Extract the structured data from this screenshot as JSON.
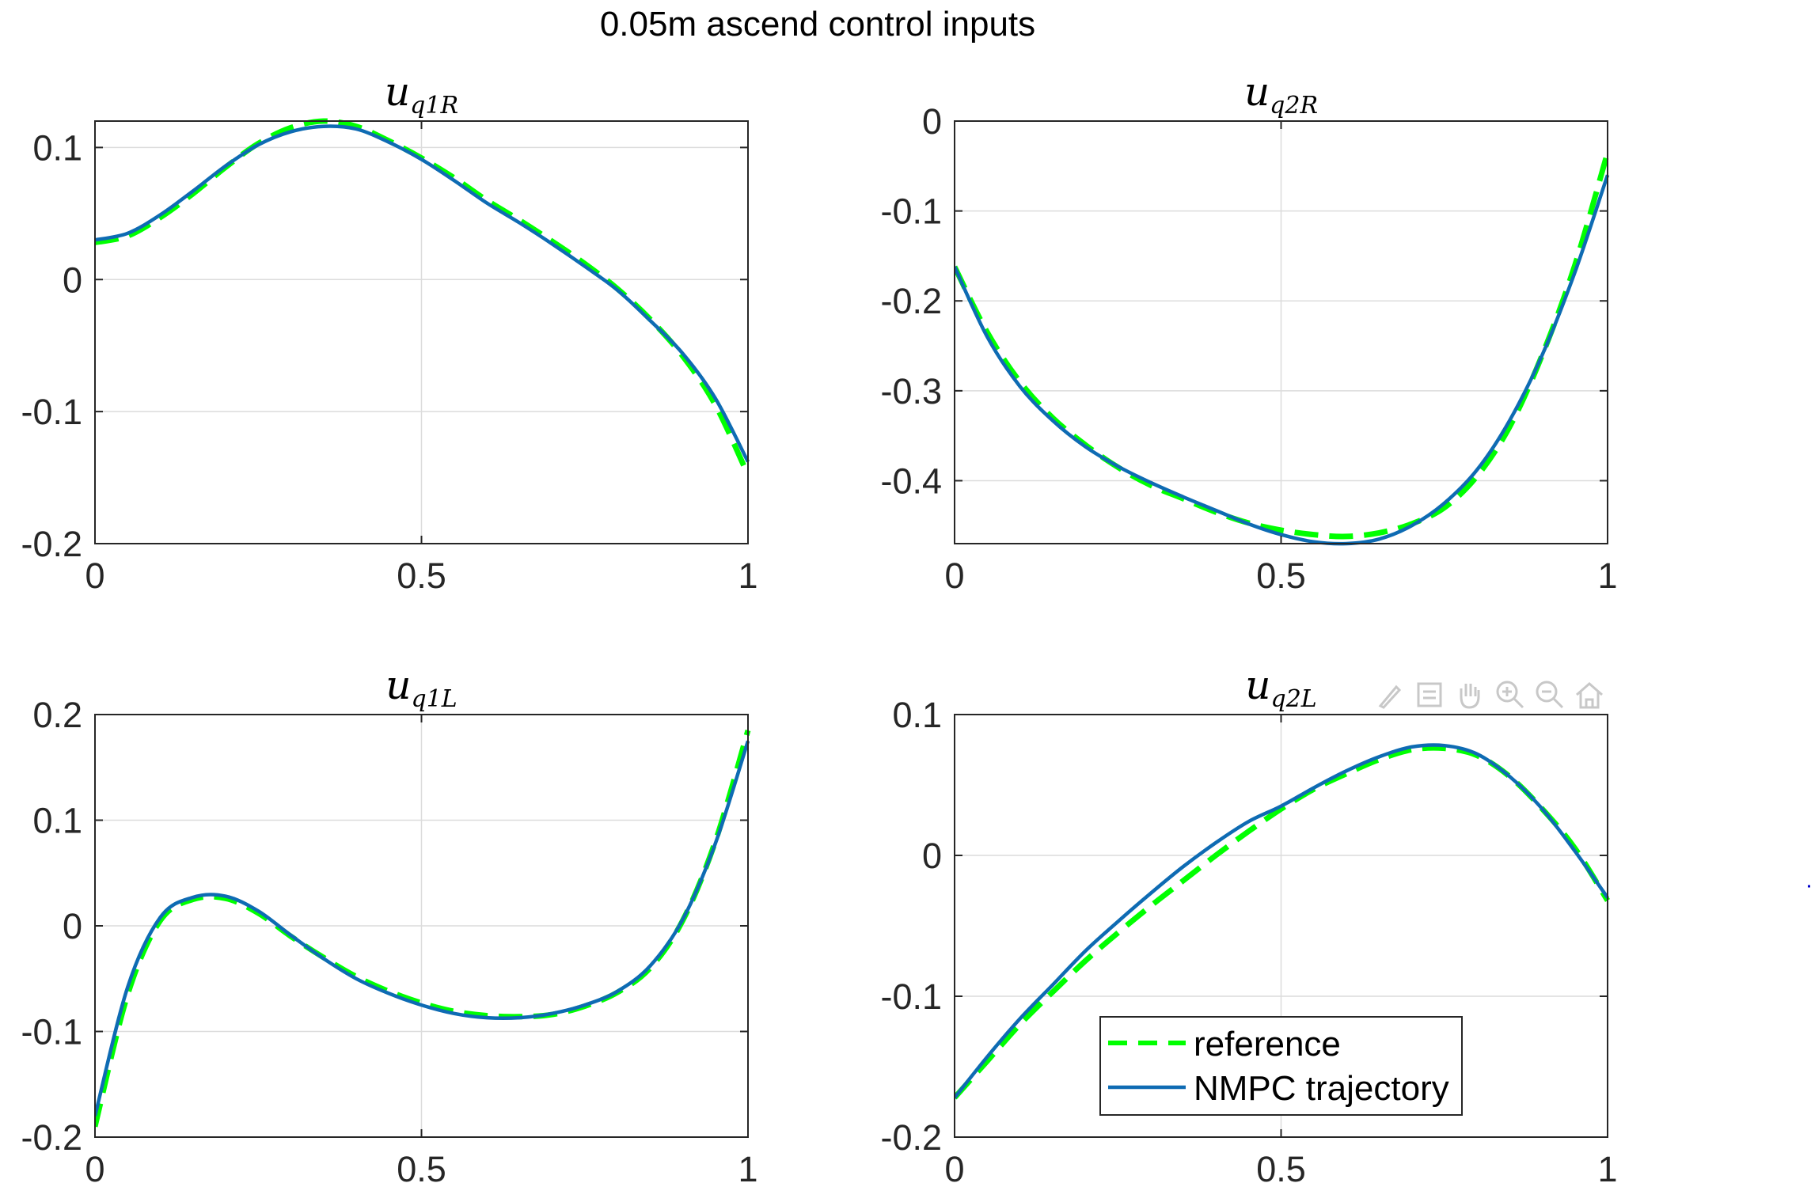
{
  "figure": {
    "title": "0.05m ascend control inputs"
  },
  "legend": {
    "reference_label": "reference",
    "nmpc_label": "NMPC trajectory"
  },
  "colors": {
    "reference": "#00ff00",
    "nmpc": "#0e6bb3",
    "grid": "#dcdcdc",
    "axes": "#262626"
  },
  "toolbar": {
    "icons": [
      "brush-icon",
      "datatip-icon",
      "pan-icon",
      "zoom-in-icon",
      "zoom-out-icon",
      "home-icon"
    ]
  },
  "chart_data": [
    {
      "type": "line",
      "title": "u_{q1R}",
      "title_base": "u",
      "title_sub": "q1R",
      "xlim": [
        0,
        1
      ],
      "ylim": [
        -0.2,
        0.12
      ],
      "xticks": [
        0,
        0.5,
        1
      ],
      "xtick_labels": [
        "0",
        "0.5",
        "1"
      ],
      "yticks": [
        -0.2,
        -0.1,
        0,
        0.1
      ],
      "ytick_labels": [
        "-0.2",
        "-0.1",
        "0",
        "0.1"
      ],
      "grid": true,
      "x": [
        0,
        0.05,
        0.1,
        0.15,
        0.2,
        0.25,
        0.3,
        0.35,
        0.4,
        0.45,
        0.5,
        0.55,
        0.6,
        0.65,
        0.7,
        0.75,
        0.8,
        0.85,
        0.9,
        0.95,
        1.0
      ],
      "series": [
        {
          "name": "reference",
          "values": [
            0.028,
            0.033,
            0.047,
            0.065,
            0.085,
            0.103,
            0.115,
            0.12,
            0.116,
            0.105,
            0.092,
            0.077,
            0.06,
            0.045,
            0.029,
            0.012,
            -0.007,
            -0.03,
            -0.058,
            -0.095,
            -0.148
          ]
        },
        {
          "name": "NMPC trajectory",
          "values": [
            0.03,
            0.035,
            0.049,
            0.067,
            0.086,
            0.102,
            0.112,
            0.116,
            0.114,
            0.104,
            0.091,
            0.075,
            0.058,
            0.043,
            0.027,
            0.01,
            -0.008,
            -0.031,
            -0.056,
            -0.09,
            -0.138
          ]
        }
      ]
    },
    {
      "type": "line",
      "title": "u_{q2R}",
      "title_base": "u",
      "title_sub": "q2R",
      "xlim": [
        0,
        1
      ],
      "ylim": [
        -0.47,
        0
      ],
      "xticks": [
        0,
        0.5,
        1
      ],
      "xtick_labels": [
        "0",
        "0.5",
        "1"
      ],
      "yticks": [
        -0.4,
        -0.3,
        -0.2,
        -0.1,
        0
      ],
      "ytick_labels": [
        "-0.4",
        "-0.3",
        "-0.2",
        "-0.1",
        "0"
      ],
      "grid": true,
      "x": [
        0,
        0.05,
        0.1,
        0.15,
        0.2,
        0.25,
        0.3,
        0.35,
        0.4,
        0.45,
        0.5,
        0.55,
        0.6,
        0.65,
        0.7,
        0.75,
        0.8,
        0.85,
        0.9,
        0.95,
        1.0
      ],
      "series": [
        {
          "name": "reference",
          "values": [
            -0.162,
            -0.235,
            -0.29,
            -0.33,
            -0.36,
            -0.385,
            -0.405,
            -0.42,
            -0.435,
            -0.447,
            -0.455,
            -0.46,
            -0.462,
            -0.458,
            -0.448,
            -0.43,
            -0.395,
            -0.34,
            -0.26,
            -0.16,
            -0.035
          ]
        },
        {
          "name": "NMPC trajectory",
          "values": [
            -0.162,
            -0.24,
            -0.295,
            -0.333,
            -0.362,
            -0.384,
            -0.402,
            -0.418,
            -0.433,
            -0.448,
            -0.46,
            -0.468,
            -0.47,
            -0.465,
            -0.45,
            -0.425,
            -0.388,
            -0.333,
            -0.26,
            -0.168,
            -0.06
          ]
        }
      ]
    },
    {
      "type": "line",
      "title": "u_{q1L}",
      "title_base": "u",
      "title_sub": "q1L",
      "xlim": [
        0,
        1
      ],
      "ylim": [
        -0.2,
        0.2
      ],
      "xticks": [
        0,
        0.5,
        1
      ],
      "xtick_labels": [
        "0",
        "0.5",
        "1"
      ],
      "yticks": [
        -0.2,
        -0.1,
        0,
        0.1,
        0.2
      ],
      "ytick_labels": [
        "-0.2",
        "-0.1",
        "0",
        "0.1",
        "0.2"
      ],
      "grid": true,
      "x": [
        0,
        0.05,
        0.1,
        0.15,
        0.2,
        0.25,
        0.3,
        0.35,
        0.4,
        0.45,
        0.5,
        0.55,
        0.6,
        0.65,
        0.7,
        0.75,
        0.8,
        0.85,
        0.9,
        0.95,
        1.0
      ],
      "series": [
        {
          "name": "reference",
          "values": [
            -0.19,
            -0.065,
            0.005,
            0.025,
            0.026,
            0.012,
            -0.01,
            -0.03,
            -0.048,
            -0.062,
            -0.073,
            -0.081,
            -0.085,
            -0.086,
            -0.084,
            -0.076,
            -0.063,
            -0.04,
            0.005,
            0.08,
            0.185
          ]
        },
        {
          "name": "NMPC trajectory",
          "values": [
            -0.18,
            -0.058,
            0.008,
            0.027,
            0.028,
            0.014,
            -0.009,
            -0.031,
            -0.05,
            -0.064,
            -0.075,
            -0.083,
            -0.087,
            -0.087,
            -0.083,
            -0.075,
            -0.062,
            -0.038,
            0.006,
            0.078,
            0.175
          ]
        }
      ]
    },
    {
      "type": "line",
      "title": "u_{q2L}",
      "title_base": "u",
      "title_sub": "q2L",
      "xlim": [
        0,
        1
      ],
      "ylim": [
        -0.2,
        0.1
      ],
      "xticks": [
        0,
        0.5,
        1
      ],
      "xtick_labels": [
        "0",
        "0.5",
        "1"
      ],
      "yticks": [
        -0.2,
        -0.1,
        0,
        0.1
      ],
      "ytick_labels": [
        "-0.2",
        "-0.1",
        "0",
        "0.1"
      ],
      "grid": true,
      "legend": "lower-center",
      "x": [
        0,
        0.05,
        0.1,
        0.15,
        0.2,
        0.25,
        0.3,
        0.35,
        0.4,
        0.45,
        0.5,
        0.55,
        0.6,
        0.65,
        0.7,
        0.75,
        0.8,
        0.85,
        0.9,
        0.95,
        1.0
      ],
      "series": [
        {
          "name": "reference",
          "values": [
            -0.172,
            -0.146,
            -0.12,
            -0.097,
            -0.075,
            -0.055,
            -0.036,
            -0.018,
            0.0,
            0.017,
            0.033,
            0.047,
            0.058,
            0.068,
            0.075,
            0.076,
            0.071,
            0.056,
            0.033,
            0.005,
            -0.032
          ]
        },
        {
          "name": "NMPC trajectory",
          "values": [
            -0.172,
            -0.143,
            -0.116,
            -0.092,
            -0.068,
            -0.047,
            -0.027,
            -0.008,
            0.009,
            0.024,
            0.035,
            0.048,
            0.06,
            0.07,
            0.077,
            0.078,
            0.072,
            0.056,
            0.033,
            0.003,
            -0.03
          ]
        }
      ]
    }
  ]
}
